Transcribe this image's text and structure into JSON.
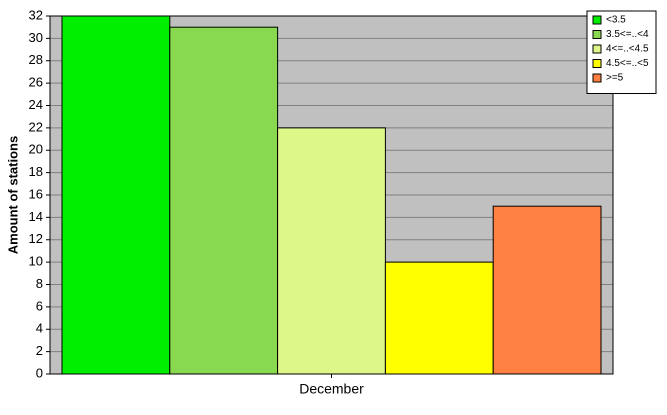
{
  "chart_data": {
    "type": "bar",
    "y_label": "Amount of stations",
    "categories": [
      "December"
    ],
    "series": [
      {
        "name": "<3.5",
        "color": "#00ee00",
        "values": [
          32
        ]
      },
      {
        "name": "3.5<=..<4",
        "color": "#88d850",
        "values": [
          31
        ]
      },
      {
        "name": "4<=..<4.5",
        "color": "#ddf888",
        "values": [
          22
        ]
      },
      {
        "name": "4.5<=..<5",
        "color": "#ffff00",
        "values": [
          10
        ]
      },
      {
        "name": ">=5",
        "color": "#ff8040",
        "values": [
          15
        ]
      }
    ],
    "ylim": [
      0,
      32
    ],
    "yticks": [
      0,
      2,
      4,
      6,
      8,
      10,
      12,
      14,
      16,
      18,
      20,
      22,
      24,
      26,
      28,
      30,
      32
    ],
    "grid": true,
    "legend": "top-right"
  }
}
